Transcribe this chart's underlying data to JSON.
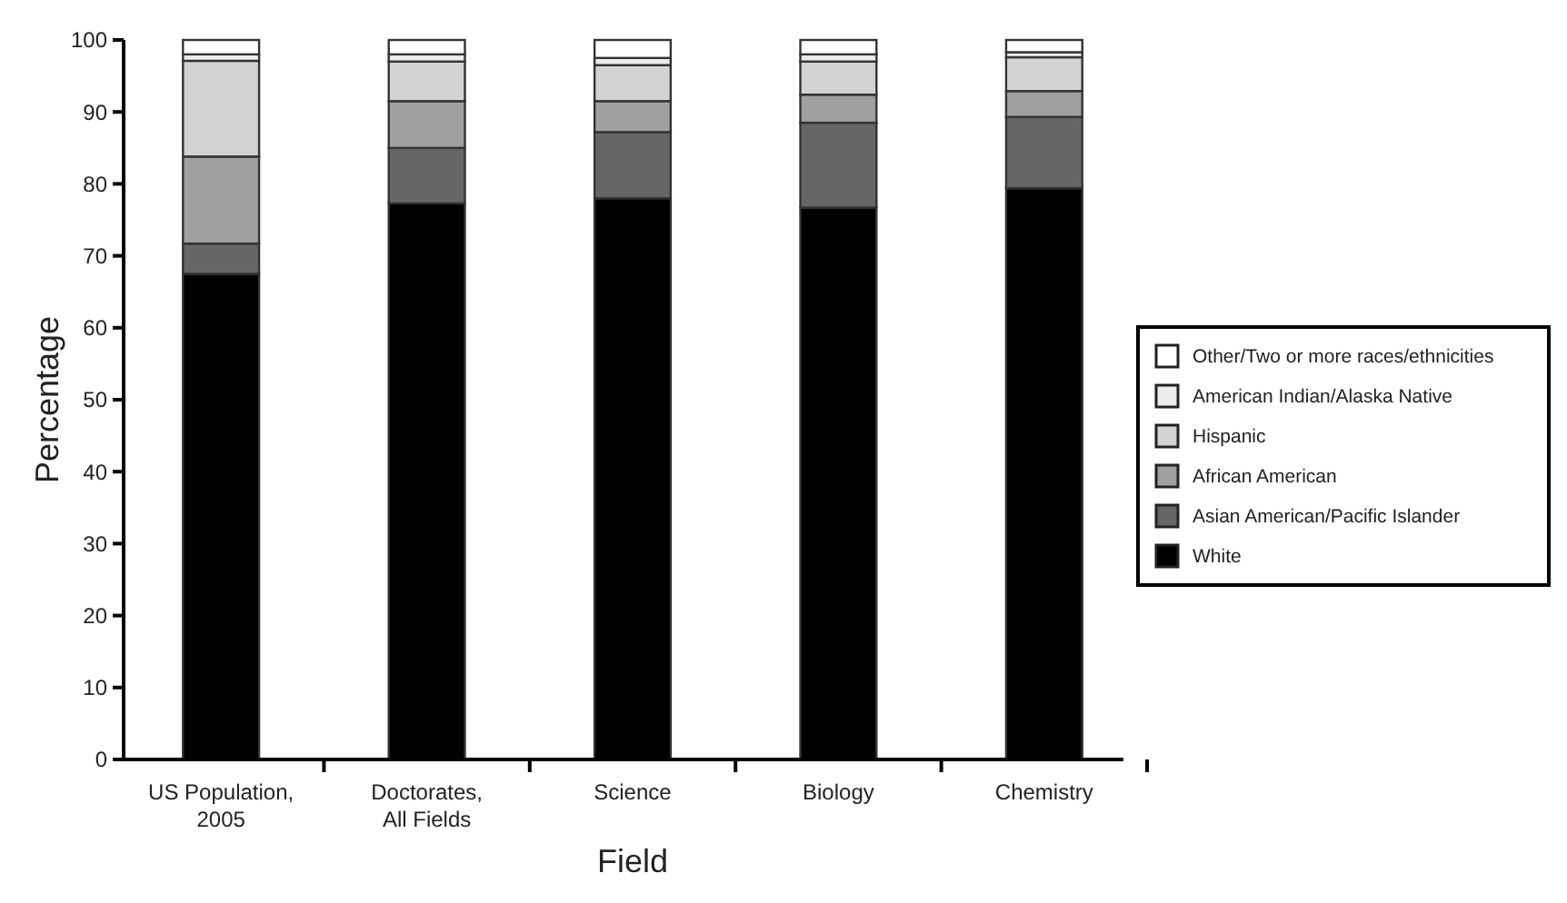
{
  "chart_data": {
    "type": "bar",
    "stacked": true,
    "xlabel": "Field",
    "ylabel": "Percentage",
    "categories": [
      "US Population, 2005",
      "Doctorates, All Fields",
      "Science",
      "Biology",
      "Chemistry"
    ],
    "series": [
      {
        "name": "White",
        "color": "#000000",
        "values": [
          67.5,
          77.3,
          78,
          76.7,
          79.4
        ]
      },
      {
        "name": "Asian American/Pacific Islander",
        "color": "#666666",
        "values": [
          4.2,
          7.7,
          9.2,
          11.8,
          9.9
        ]
      },
      {
        "name": "African American",
        "color": "#a0a0a0",
        "values": [
          12.1,
          6.5,
          4.3,
          3.9,
          3.6
        ]
      },
      {
        "name": "Hispanic",
        "color": "#d3d3d3",
        "values": [
          13.3,
          5.5,
          5,
          4.6,
          4.7
        ]
      },
      {
        "name": "American Indian/Alaska Native",
        "color": "#ececec",
        "values": [
          0.9,
          1,
          1,
          1,
          0.7
        ]
      },
      {
        "name": "Other/Two or more races/ethnicities",
        "color": "#ffffff",
        "values": [
          2,
          2,
          2.5,
          2,
          1.7
        ]
      }
    ],
    "ylim": [
      0,
      100
    ],
    "yticks": [
      0,
      10,
      20,
      30,
      40,
      50,
      60,
      70,
      80,
      90,
      100
    ],
    "legend": "right"
  }
}
